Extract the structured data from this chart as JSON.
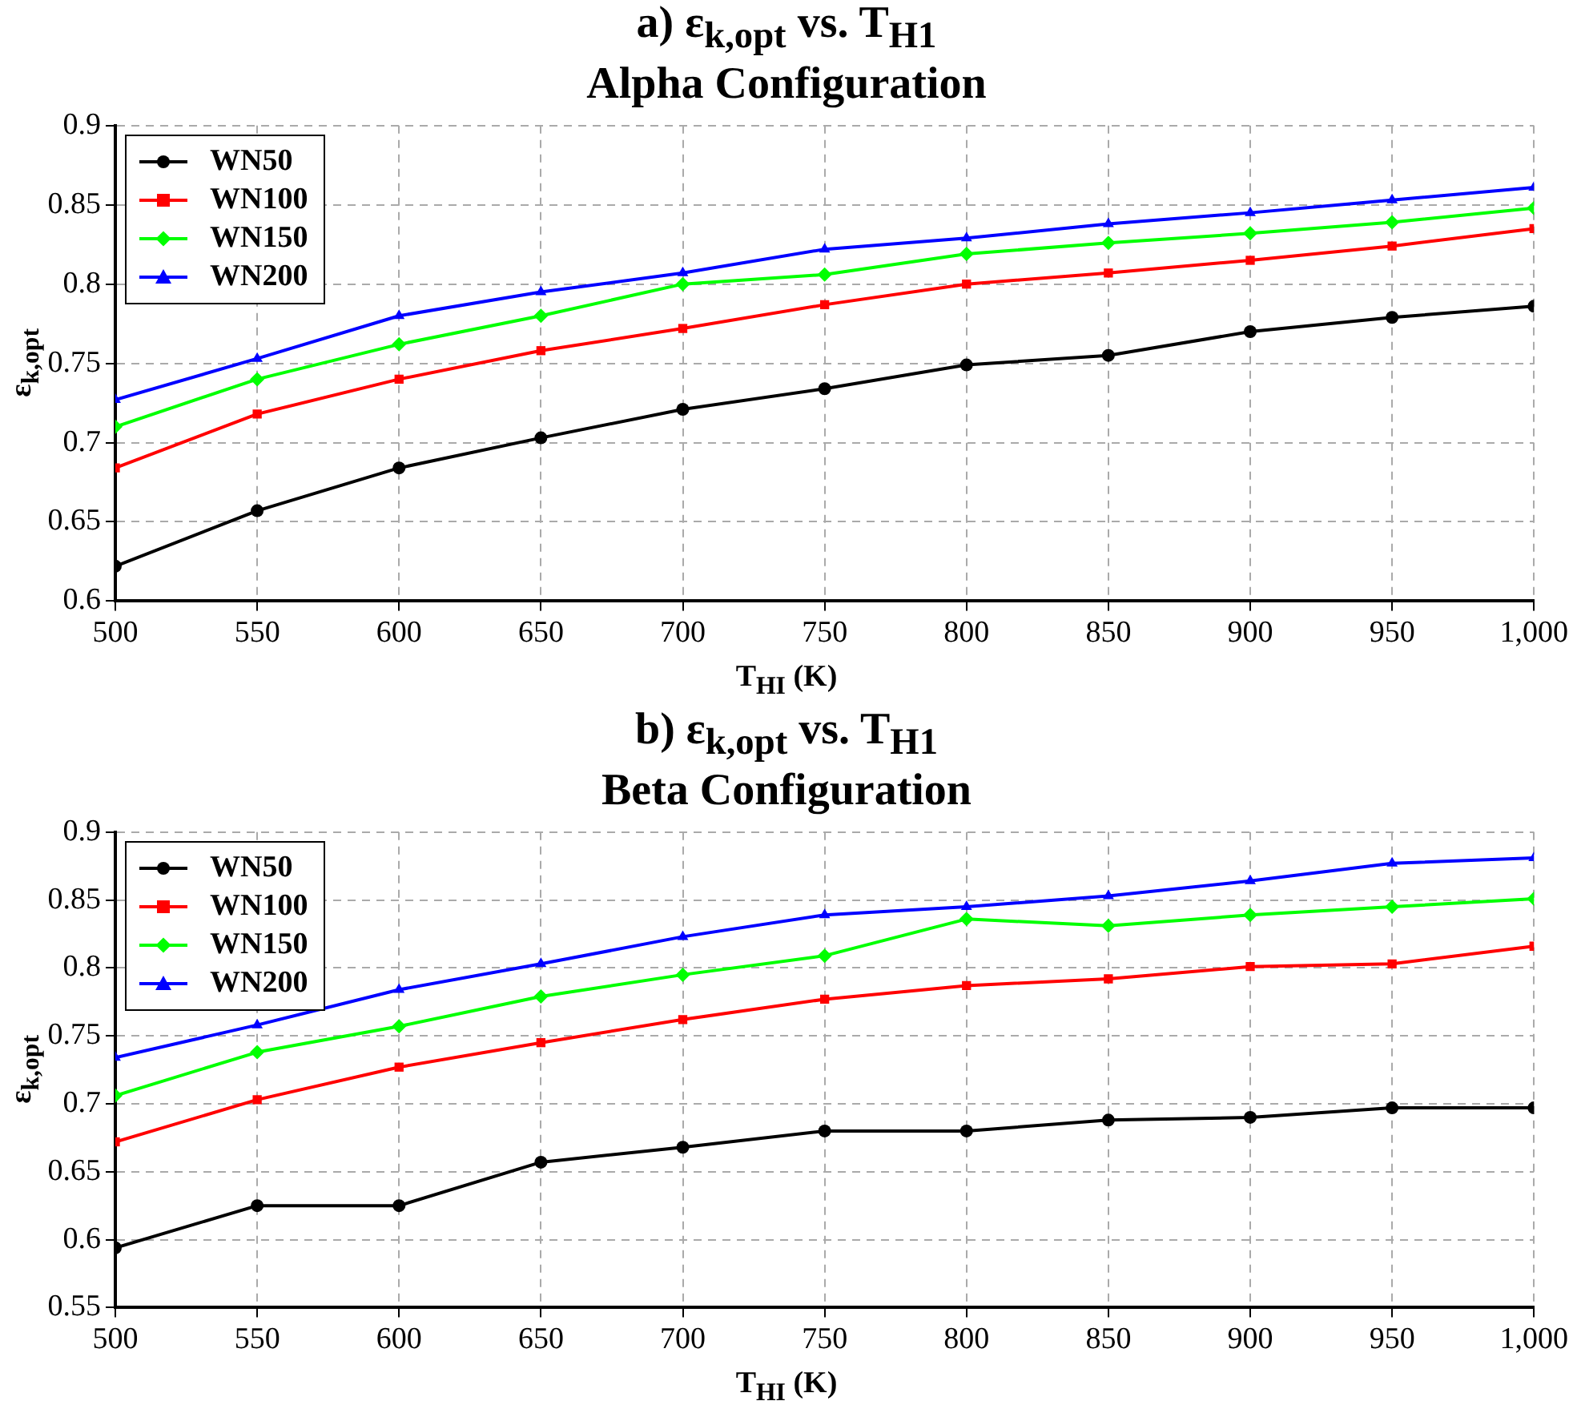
{
  "chart_data": [
    {
      "type": "line",
      "title": "a) ε$_{k,opt}$ vs. T$_{H1}$",
      "subtitle": "Alpha Configuration",
      "xlabel": "T$_{HI}$ (K)",
      "ylabel": "ε$_{k,opt}$",
      "x": [
        500,
        550,
        600,
        650,
        700,
        750,
        800,
        850,
        900,
        950,
        1000
      ],
      "series": [
        {
          "name": "WN50",
          "color": "#000000",
          "marker": "circle",
          "values": [
            0.622,
            0.657,
            0.684,
            0.703,
            0.721,
            0.734,
            0.749,
            0.755,
            0.77,
            0.779,
            0.786
          ]
        },
        {
          "name": "WN100",
          "color": "#ff0000",
          "marker": "square",
          "values": [
            0.684,
            0.718,
            0.74,
            0.758,
            0.772,
            0.787,
            0.8,
            0.807,
            0.815,
            0.824,
            0.835
          ]
        },
        {
          "name": "WN150",
          "color": "#00ff00",
          "marker": "diamond",
          "values": [
            0.71,
            0.74,
            0.762,
            0.78,
            0.8,
            0.806,
            0.819,
            0.826,
            0.832,
            0.839,
            0.848
          ]
        },
        {
          "name": "WN200",
          "color": "#0000ff",
          "marker": "triangle",
          "values": [
            0.727,
            0.753,
            0.78,
            0.795,
            0.807,
            0.822,
            0.829,
            0.838,
            0.845,
            0.853,
            0.861
          ]
        }
      ],
      "xlim": [
        500,
        1000
      ],
      "xticks": [
        500,
        550,
        600,
        650,
        700,
        750,
        800,
        850,
        900,
        950,
        {
          "value": 1000,
          "label": "1,000"
        }
      ],
      "ylim": [
        0.6,
        0.9
      ],
      "yticks": [
        0.6,
        0.65,
        0.7,
        0.75,
        0.8,
        0.85,
        0.9
      ],
      "grid": true,
      "legend": "top left",
      "line_style": "solid"
    },
    {
      "type": "line",
      "title": "b) ε$_{k,opt}$ vs. T$_{H1}$",
      "subtitle": "Beta Configuration",
      "xlabel": "T$_{HI}$ (K)",
      "ylabel": "ε$_{k,opt}$",
      "x": [
        500,
        550,
        600,
        650,
        700,
        750,
        800,
        850,
        900,
        950,
        1000
      ],
      "series": [
        {
          "name": "WN50",
          "color": "#000000",
          "marker": "circle",
          "values": [
            0.594,
            0.625,
            0.625,
            0.657,
            0.668,
            0.68,
            0.68,
            0.688,
            0.69,
            0.697,
            0.697
          ]
        },
        {
          "name": "WN100",
          "color": "#ff0000",
          "marker": "square",
          "values": [
            0.672,
            0.703,
            0.727,
            0.745,
            0.762,
            0.777,
            0.787,
            0.792,
            0.801,
            0.803,
            0.816
          ]
        },
        {
          "name": "WN150",
          "color": "#00ff00",
          "marker": "diamond",
          "values": [
            0.706,
            0.738,
            0.757,
            0.779,
            0.795,
            0.809,
            0.836,
            0.831,
            0.839,
            0.845,
            0.851
          ]
        },
        {
          "name": "WN200",
          "color": "#0000ff",
          "marker": "triangle",
          "values": [
            0.734,
            0.758,
            0.784,
            0.803,
            0.823,
            0.839,
            0.845,
            0.853,
            0.864,
            0.877,
            0.881
          ]
        }
      ],
      "xlim": [
        500,
        1000
      ],
      "xticks": [
        500,
        550,
        600,
        650,
        700,
        750,
        800,
        850,
        900,
        950,
        {
          "value": 1000,
          "label": "1,000"
        }
      ],
      "ylim": [
        0.55,
        0.9
      ],
      "yticks": [
        0.55,
        0.6,
        0.65,
        0.7,
        0.75,
        0.8,
        0.85,
        0.9
      ],
      "grid": true,
      "legend": "top left",
      "line_style": "solid"
    }
  ]
}
